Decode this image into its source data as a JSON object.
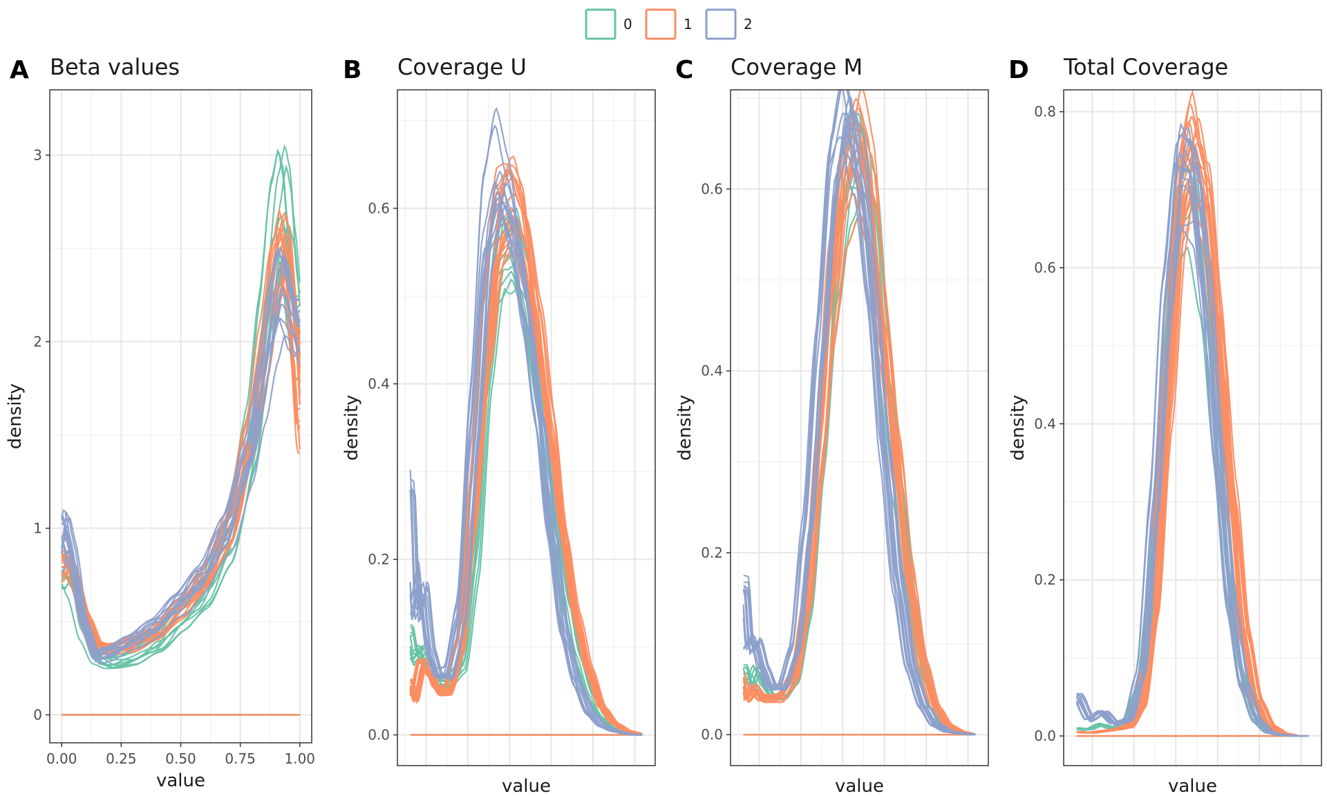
{
  "legend": {
    "placement": "top-center",
    "entries": [
      {
        "label": "0",
        "color": "#66C2A5"
      },
      {
        "label": "1",
        "color": "#FC8D62"
      },
      {
        "label": "2",
        "color": "#8DA0CB"
      }
    ]
  },
  "chart_data": [
    {
      "type": "line",
      "panel_letter": "A",
      "title": "Beta values",
      "xlabel": "value",
      "ylabel": "density",
      "xlim": [
        -0.05,
        1.05
      ],
      "ylim": [
        -0.15,
        3.35
      ],
      "xticks": [
        0.0,
        0.25,
        0.5,
        0.75,
        1.0
      ],
      "xtick_labels": [
        "0.00",
        "0.25",
        "0.50",
        "0.75",
        "1.00"
      ],
      "yticks": [
        0,
        1,
        2,
        3
      ],
      "ytick_labels": [
        "0",
        "1",
        "2",
        "3"
      ],
      "grid": true,
      "series": [
        {
          "group": "0",
          "curves": 10,
          "x": [
            0,
            0.02,
            0.05,
            0.1,
            0.15,
            0.2,
            0.3,
            0.4,
            0.5,
            0.6,
            0.7,
            0.8,
            0.85,
            0.9,
            0.93,
            0.95,
            0.97,
            1.0
          ],
          "y": [
            0.75,
            0.8,
            0.72,
            0.45,
            0.3,
            0.28,
            0.3,
            0.38,
            0.5,
            0.65,
            0.9,
            1.5,
            2.0,
            2.6,
            2.8,
            2.7,
            2.4,
            2.0
          ]
        },
        {
          "group": "1",
          "curves": 16,
          "x": [
            0,
            0.02,
            0.05,
            0.1,
            0.15,
            0.2,
            0.3,
            0.4,
            0.5,
            0.6,
            0.7,
            0.8,
            0.85,
            0.9,
            0.93,
            0.95,
            0.97,
            1.0
          ],
          "y": [
            0.78,
            0.82,
            0.74,
            0.5,
            0.36,
            0.35,
            0.37,
            0.44,
            0.56,
            0.72,
            0.98,
            1.5,
            1.9,
            2.35,
            2.5,
            2.4,
            2.1,
            1.5
          ]
        },
        {
          "group": "2",
          "curves": 12,
          "x": [
            0,
            0.02,
            0.05,
            0.1,
            0.15,
            0.2,
            0.3,
            0.4,
            0.5,
            0.6,
            0.7,
            0.8,
            0.85,
            0.9,
            0.93,
            0.95,
            0.97,
            1.0
          ],
          "y": [
            0.85,
            0.98,
            0.85,
            0.48,
            0.3,
            0.32,
            0.38,
            0.46,
            0.58,
            0.72,
            0.95,
            1.35,
            1.7,
            2.1,
            2.25,
            2.2,
            2.1,
            2.0
          ]
        }
      ]
    },
    {
      "type": "line",
      "panel_letter": "B",
      "title": "Coverage U",
      "xlabel": "value",
      "ylabel": "density",
      "xlim": [
        0.0,
        1.0
      ],
      "ylim": [
        -0.035,
        0.735
      ],
      "xticks": [],
      "yticks": [
        0.0,
        0.2,
        0.4,
        0.6
      ],
      "ytick_labels": [
        "0.0",
        "0.2",
        "0.4",
        "0.6"
      ],
      "grid": true,
      "series": [
        {
          "group": "0",
          "curves": 10,
          "x": [
            0.05,
            0.07,
            0.1,
            0.13,
            0.16,
            0.2,
            0.25,
            0.3,
            0.35,
            0.4,
            0.45,
            0.5,
            0.55,
            0.6,
            0.65,
            0.7,
            0.75,
            0.8,
            0.85,
            0.9,
            0.95
          ],
          "y": [
            0.12,
            0.09,
            0.1,
            0.08,
            0.06,
            0.06,
            0.08,
            0.2,
            0.42,
            0.56,
            0.58,
            0.52,
            0.42,
            0.28,
            0.16,
            0.09,
            0.045,
            0.02,
            0.008,
            0.003,
            0.001
          ]
        },
        {
          "group": "1",
          "curves": 18,
          "x": [
            0.05,
            0.07,
            0.1,
            0.13,
            0.16,
            0.2,
            0.25,
            0.3,
            0.35,
            0.4,
            0.45,
            0.5,
            0.55,
            0.6,
            0.65,
            0.7,
            0.75,
            0.8,
            0.85,
            0.9,
            0.95
          ],
          "y": [
            0.06,
            0.04,
            0.08,
            0.07,
            0.05,
            0.05,
            0.1,
            0.26,
            0.46,
            0.58,
            0.6,
            0.56,
            0.46,
            0.34,
            0.22,
            0.13,
            0.07,
            0.03,
            0.012,
            0.004,
            0.001
          ]
        },
        {
          "group": "2",
          "curves": 12,
          "x": [
            0.05,
            0.07,
            0.1,
            0.13,
            0.16,
            0.2,
            0.25,
            0.3,
            0.35,
            0.4,
            0.45,
            0.5,
            0.55,
            0.6,
            0.65,
            0.7,
            0.75,
            0.8,
            0.85,
            0.9,
            0.95
          ],
          "y": [
            0.3,
            0.14,
            0.18,
            0.1,
            0.07,
            0.07,
            0.14,
            0.36,
            0.58,
            0.65,
            0.6,
            0.5,
            0.38,
            0.24,
            0.12,
            0.06,
            0.025,
            0.01,
            0.004,
            0.001,
            0.0
          ]
        }
      ]
    },
    {
      "type": "line",
      "panel_letter": "C",
      "title": "Coverage M",
      "xlabel": "value",
      "ylabel": "density",
      "xlim": [
        0.0,
        1.0
      ],
      "ylim": [
        -0.034,
        0.709
      ],
      "xticks": [],
      "yticks": [
        0.0,
        0.2,
        0.4,
        0.6
      ],
      "ytick_labels": [
        "0.0",
        "0.2",
        "0.4",
        "0.6"
      ],
      "grid": true,
      "series": [
        {
          "group": "0",
          "curves": 8,
          "x": [
            0.05,
            0.07,
            0.1,
            0.13,
            0.16,
            0.2,
            0.25,
            0.3,
            0.35,
            0.4,
            0.45,
            0.5,
            0.55,
            0.6,
            0.65,
            0.7,
            0.75,
            0.8,
            0.85,
            0.9,
            0.95
          ],
          "y": [
            0.07,
            0.05,
            0.07,
            0.05,
            0.04,
            0.04,
            0.06,
            0.14,
            0.3,
            0.48,
            0.6,
            0.62,
            0.55,
            0.4,
            0.26,
            0.14,
            0.06,
            0.02,
            0.006,
            0.002,
            0.0
          ]
        },
        {
          "group": "1",
          "curves": 16,
          "x": [
            0.05,
            0.07,
            0.1,
            0.13,
            0.16,
            0.2,
            0.25,
            0.3,
            0.35,
            0.4,
            0.45,
            0.5,
            0.55,
            0.6,
            0.65,
            0.7,
            0.75,
            0.8,
            0.85,
            0.9,
            0.95
          ],
          "y": [
            0.06,
            0.04,
            0.05,
            0.04,
            0.04,
            0.04,
            0.06,
            0.14,
            0.3,
            0.48,
            0.6,
            0.64,
            0.58,
            0.44,
            0.3,
            0.17,
            0.08,
            0.03,
            0.01,
            0.003,
            0.0
          ]
        },
        {
          "group": "2",
          "curves": 12,
          "x": [
            0.05,
            0.07,
            0.1,
            0.13,
            0.16,
            0.2,
            0.25,
            0.3,
            0.35,
            0.4,
            0.45,
            0.5,
            0.55,
            0.6,
            0.65,
            0.7,
            0.75,
            0.8,
            0.85,
            0.9,
            0.95
          ],
          "y": [
            0.16,
            0.09,
            0.1,
            0.07,
            0.05,
            0.05,
            0.09,
            0.22,
            0.42,
            0.6,
            0.66,
            0.6,
            0.46,
            0.3,
            0.16,
            0.07,
            0.03,
            0.01,
            0.003,
            0.001,
            0.0
          ]
        }
      ]
    },
    {
      "type": "line",
      "panel_letter": "D",
      "title": "Total Coverage",
      "xlabel": "value",
      "ylabel": "density",
      "xlim": [
        0.0,
        1.0
      ],
      "ylim": [
        -0.038,
        0.828
      ],
      "xticks": [],
      "yticks": [
        0.0,
        0.2,
        0.4,
        0.6,
        0.8
      ],
      "ytick_labels": [
        "0.0",
        "0.2",
        "0.4",
        "0.6",
        "0.8"
      ],
      "grid": true,
      "series": [
        {
          "group": "0",
          "curves": 6,
          "x": [
            0.05,
            0.1,
            0.15,
            0.2,
            0.25,
            0.3,
            0.35,
            0.4,
            0.45,
            0.5,
            0.55,
            0.6,
            0.65,
            0.7,
            0.75,
            0.8,
            0.85,
            0.9,
            0.95
          ],
          "y": [
            0.01,
            0.008,
            0.015,
            0.01,
            0.02,
            0.06,
            0.2,
            0.45,
            0.66,
            0.7,
            0.6,
            0.4,
            0.2,
            0.08,
            0.025,
            0.006,
            0.001,
            0.0,
            0.0
          ]
        },
        {
          "group": "1",
          "curves": 18,
          "x": [
            0.05,
            0.1,
            0.15,
            0.2,
            0.25,
            0.3,
            0.35,
            0.4,
            0.45,
            0.5,
            0.55,
            0.6,
            0.65,
            0.7,
            0.75,
            0.8,
            0.85,
            0.9,
            0.95
          ],
          "y": [
            0.005,
            0.004,
            0.006,
            0.008,
            0.012,
            0.04,
            0.16,
            0.42,
            0.66,
            0.74,
            0.68,
            0.5,
            0.3,
            0.13,
            0.045,
            0.012,
            0.003,
            0.0,
            0.0
          ]
        },
        {
          "group": "2",
          "curves": 12,
          "x": [
            0.05,
            0.1,
            0.15,
            0.2,
            0.25,
            0.3,
            0.35,
            0.4,
            0.45,
            0.5,
            0.55,
            0.6,
            0.65,
            0.7,
            0.75,
            0.8,
            0.85,
            0.9,
            0.95
          ],
          "y": [
            0.05,
            0.02,
            0.03,
            0.015,
            0.02,
            0.08,
            0.28,
            0.55,
            0.72,
            0.7,
            0.55,
            0.34,
            0.16,
            0.06,
            0.018,
            0.004,
            0.001,
            0.0,
            0.0
          ]
        }
      ]
    }
  ]
}
